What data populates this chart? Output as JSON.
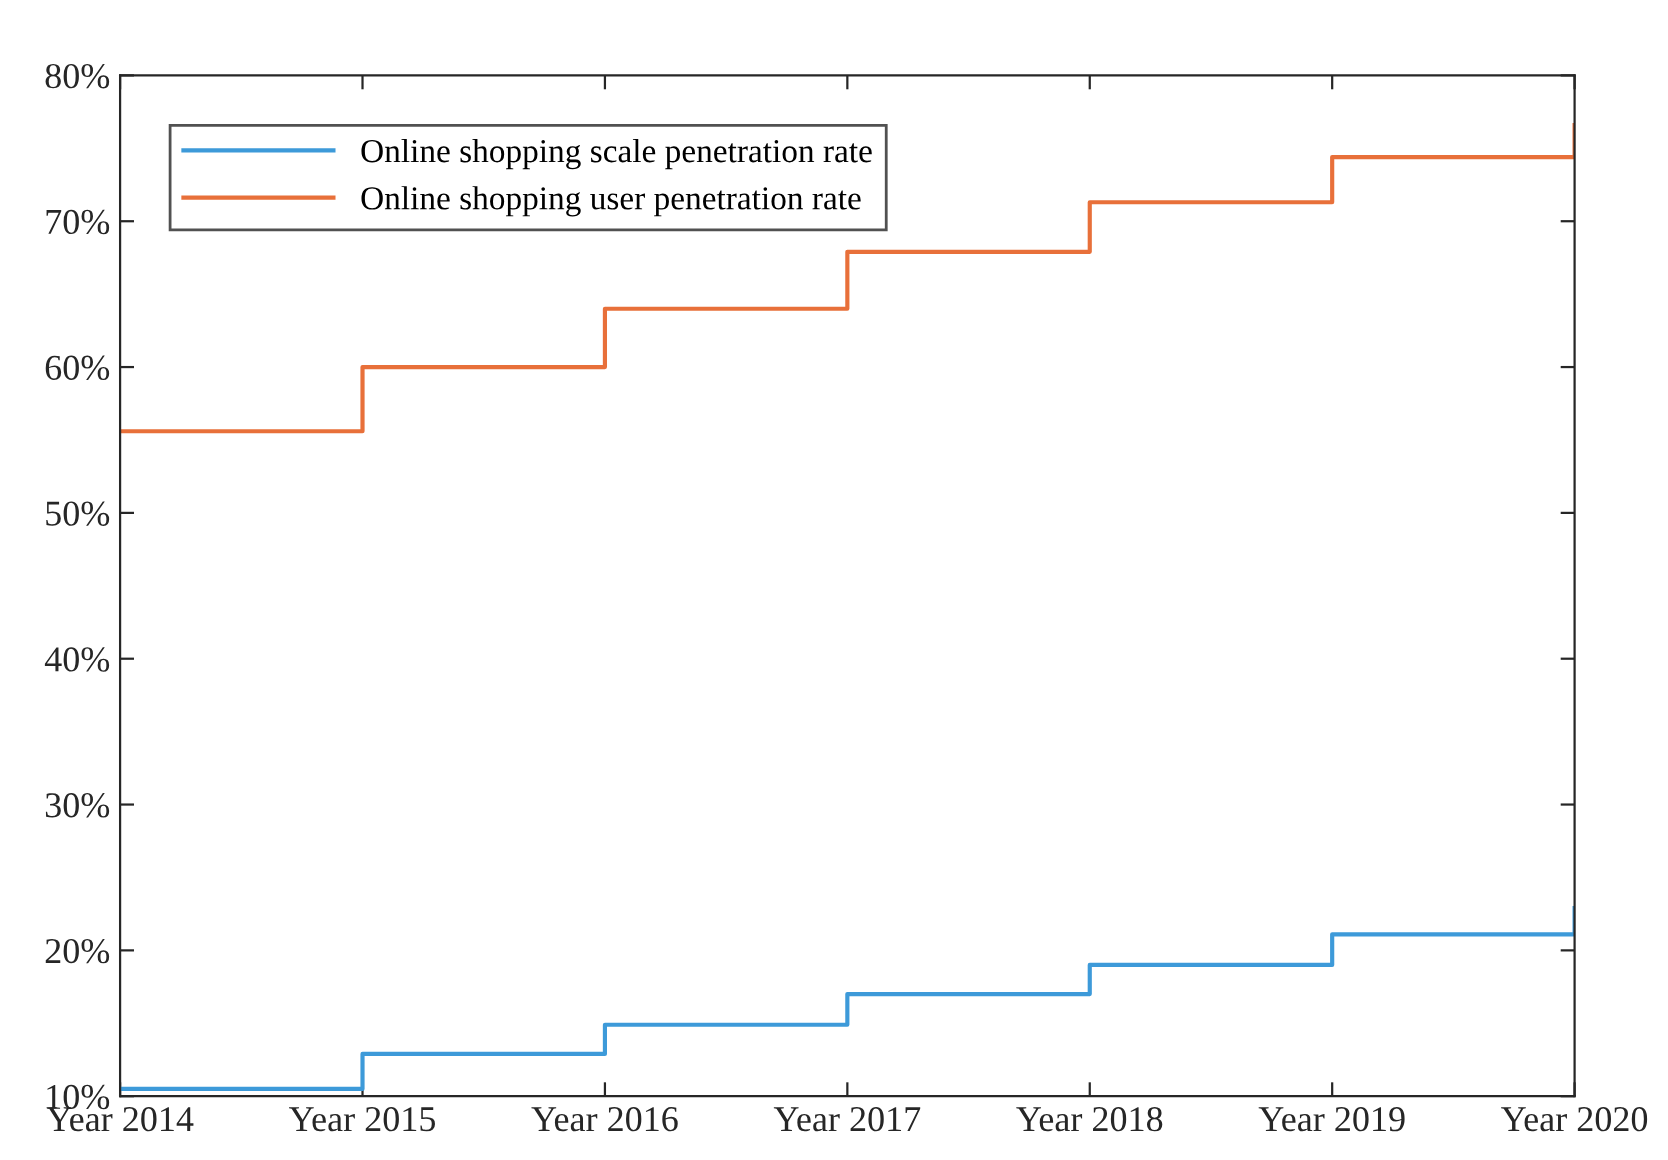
{
  "chart_data": {
    "type": "step",
    "categories": [
      "Year 2014",
      "Year 2015",
      "Year 2016",
      "Year 2017",
      "Year 2018",
      "Year 2019",
      "Year 2020"
    ],
    "series": [
      {
        "name": "Online shopping scale penetration rate",
        "color": "#3d9ad9",
        "values": [
          10.5,
          12.9,
          14.9,
          17.0,
          19.0,
          21.1,
          22.9
        ]
      },
      {
        "name": "Online shopping user penetration rate",
        "color": "#e8703a",
        "values": [
          55.6,
          60.0,
          64.0,
          67.9,
          71.3,
          74.4,
          76.6
        ]
      }
    ],
    "ylim": [
      10,
      80
    ],
    "yticks": [
      {
        "value": 10,
        "label": "10%"
      },
      {
        "value": 20,
        "label": "20%"
      },
      {
        "value": 30,
        "label": "30%"
      },
      {
        "value": 40,
        "label": "40%"
      },
      {
        "value": 50,
        "label": "50%"
      },
      {
        "value": 60,
        "label": "60%"
      },
      {
        "value": 70,
        "label": "70%"
      },
      {
        "value": 80,
        "label": "80%"
      }
    ],
    "legend": "top left",
    "grid": false,
    "line_style": "solid",
    "marker": "none"
  }
}
